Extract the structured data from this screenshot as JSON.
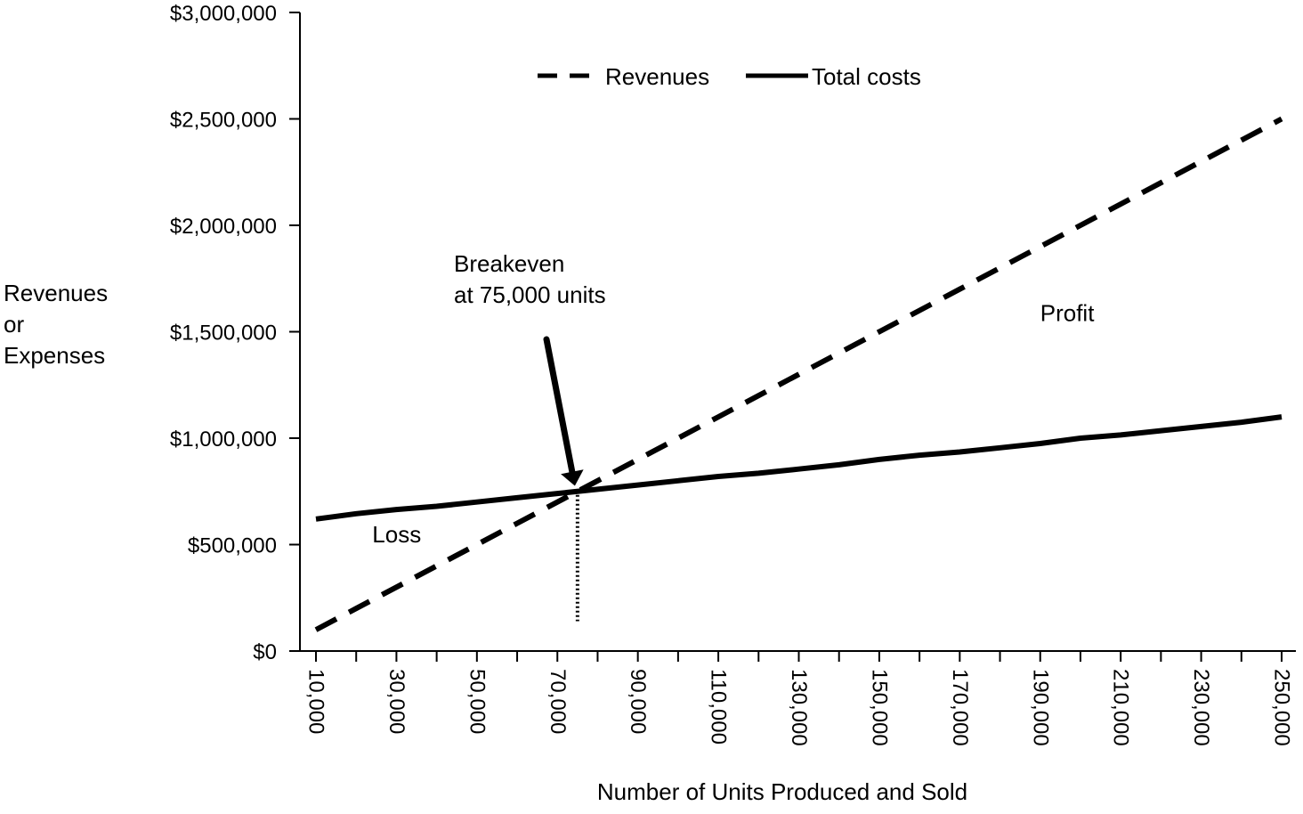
{
  "chart_data": {
    "type": "line",
    "title": "",
    "xlabel": "Number of Units Produced and Sold",
    "ylabel_lines": [
      "Revenues",
      "or",
      "Expenses"
    ],
    "x": [
      10000,
      20000,
      30000,
      40000,
      50000,
      60000,
      70000,
      80000,
      90000,
      100000,
      110000,
      120000,
      130000,
      140000,
      150000,
      160000,
      170000,
      180000,
      190000,
      200000,
      210000,
      220000,
      230000,
      240000,
      250000
    ],
    "x_tick_values": [
      10000,
      30000,
      50000,
      70000,
      90000,
      110000,
      130000,
      150000,
      170000,
      190000,
      210000,
      230000,
      250000
    ],
    "x_tick_labels": [
      "10,000",
      "30,000",
      "50,000",
      "70,000",
      "90,000",
      "110,000",
      "130,000",
      "150,000",
      "170,000",
      "190,000",
      "210,000",
      "230,000",
      "250,000"
    ],
    "xlim": [
      10000,
      250000
    ],
    "y_tick_values": [
      0,
      500000,
      1000000,
      1500000,
      2000000,
      2500000,
      3000000
    ],
    "y_tick_labels": [
      "$0",
      "$500,000",
      "$1,000,000",
      "$1,500,000",
      "$2,000,000",
      "$2,500,000",
      "$3,000,000"
    ],
    "ylim": [
      0,
      3000000
    ],
    "grid": false,
    "legend_position": "top-center",
    "series": [
      {
        "name": "Revenues",
        "style": "dashed",
        "color": "#000000",
        "values": [
          100000,
          200000,
          300000,
          400000,
          500000,
          600000,
          700000,
          800000,
          900000,
          1000000,
          1100000,
          1200000,
          1300000,
          1400000,
          1500000,
          1600000,
          1700000,
          1800000,
          1900000,
          2000000,
          2100000,
          2200000,
          2300000,
          2400000,
          2500000
        ]
      },
      {
        "name": "Total costs",
        "style": "solid",
        "color": "#000000",
        "values": [
          620000,
          645000,
          665000,
          680000,
          700000,
          720000,
          740000,
          760000,
          780000,
          800000,
          820000,
          835000,
          855000,
          875000,
          900000,
          920000,
          935000,
          955000,
          975000,
          1000000,
          1015000,
          1035000,
          1055000,
          1075000,
          1100000
        ]
      }
    ],
    "breakeven": {
      "x": 75000,
      "y": 750000,
      "label_lines": [
        "Breakeven",
        "at 75,000 units"
      ]
    },
    "annotations": [
      {
        "text": "Profit",
        "x": 190000,
        "y": 1550000
      },
      {
        "text": "Loss",
        "x": 24000,
        "y": 510000
      }
    ]
  }
}
